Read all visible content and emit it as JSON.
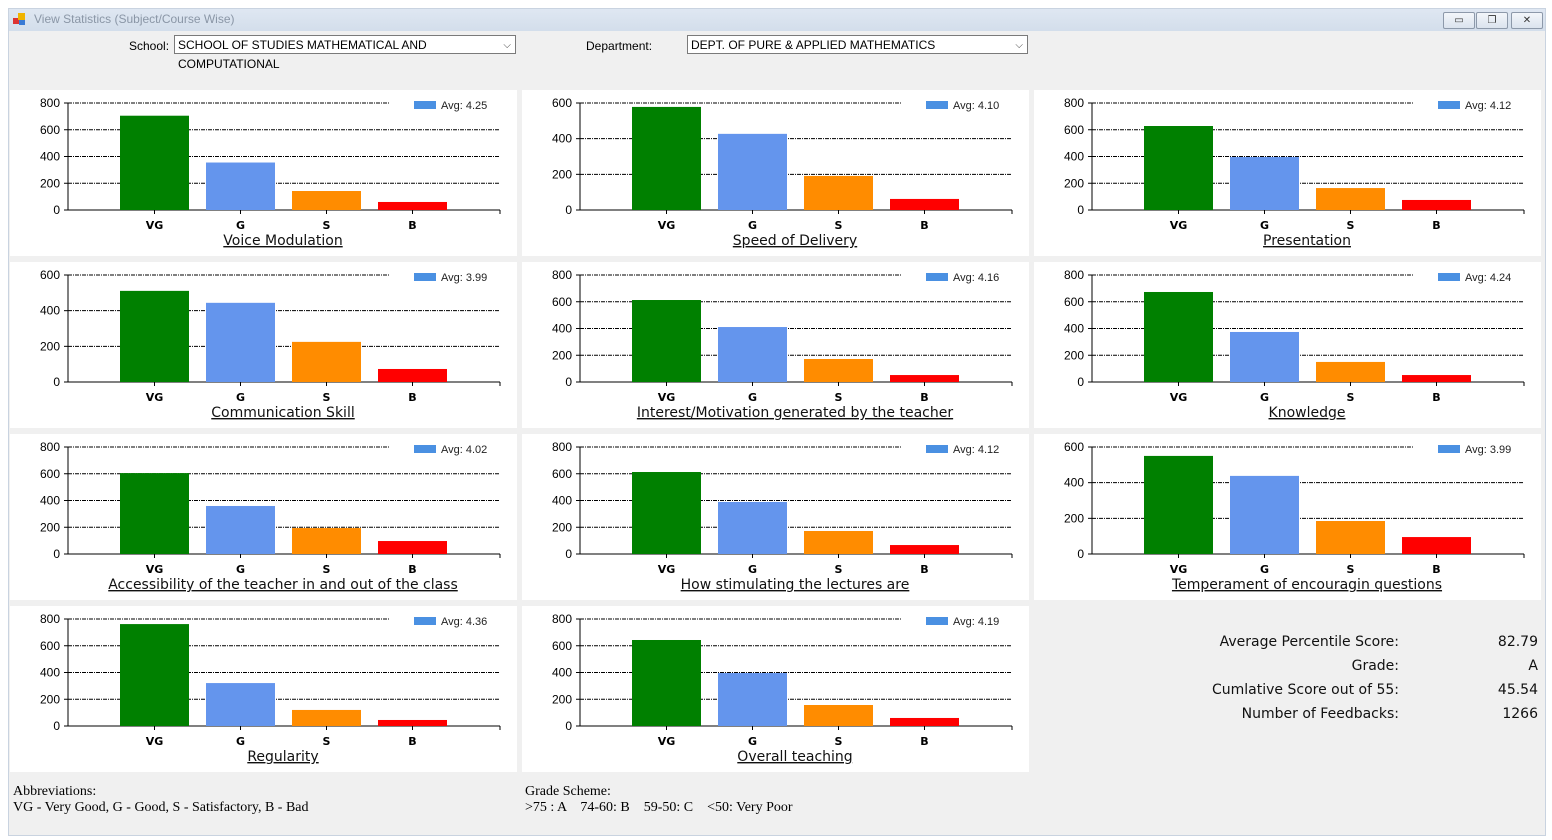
{
  "window": {
    "title": "View Statistics (Subject/Course Wise)",
    "controls": [
      "minimize",
      "restore",
      "close"
    ]
  },
  "filters": {
    "school_label": "School:",
    "school_value": "SCHOOL OF STUDIES MATHEMATICAL AND COMPUTATIONAL",
    "department_label": "Department:",
    "department_value": "DEPT. OF PURE & APPLIED MATHEMATICS"
  },
  "colors": {
    "VG": "#008000",
    "G": "#6495ed",
    "S": "#ff8c00",
    "B": "#ff0000",
    "legend": "#4a90e2"
  },
  "chart_data": [
    {
      "type": "bar",
      "title": "Voice Modulation",
      "categories": [
        "VG",
        "G",
        "S",
        "B"
      ],
      "values": [
        705,
        355,
        142,
        60
      ],
      "legend": "Avg: 4.25",
      "ylim": [
        0,
        800
      ],
      "yticks": [
        0,
        200,
        400,
        600,
        800
      ],
      "grid": true,
      "legend_position": "top-right"
    },
    {
      "type": "bar",
      "title": "Speed of Delivery",
      "categories": [
        "VG",
        "G",
        "S",
        "B"
      ],
      "values": [
        578,
        427,
        191,
        62
      ],
      "legend": "Avg: 4.10",
      "ylim": [
        0,
        600
      ],
      "yticks": [
        0,
        200,
        400,
        600
      ],
      "grid": true,
      "legend_position": "top-right"
    },
    {
      "type": "bar",
      "title": "Presentation",
      "categories": [
        "VG",
        "G",
        "S",
        "B"
      ],
      "values": [
        628,
        396,
        164,
        75
      ],
      "legend": "Avg: 4.12",
      "ylim": [
        0,
        800
      ],
      "yticks": [
        0,
        200,
        400,
        600,
        800
      ],
      "grid": true,
      "legend_position": "top-right"
    },
    {
      "type": "bar",
      "title": "Communication Skill",
      "categories": [
        "VG",
        "G",
        "S",
        "B"
      ],
      "values": [
        511,
        444,
        225,
        73
      ],
      "legend": "Avg: 3.99",
      "ylim": [
        0,
        600
      ],
      "yticks": [
        0,
        200,
        400,
        600
      ],
      "grid": true,
      "legend_position": "top-right"
    },
    {
      "type": "bar",
      "title": "Interest/Motivation generated by the teacher",
      "categories": [
        "VG",
        "G",
        "S",
        "B"
      ],
      "values": [
        613,
        411,
        172,
        52
      ],
      "legend": "Avg: 4.16",
      "ylim": [
        0,
        800
      ],
      "yticks": [
        0,
        200,
        400,
        600,
        800
      ],
      "grid": true,
      "legend_position": "top-right"
    },
    {
      "type": "bar",
      "title": "Knowledge",
      "categories": [
        "VG",
        "G",
        "S",
        "B"
      ],
      "values": [
        673,
        374,
        150,
        52
      ],
      "legend": "Avg: 4.24",
      "ylim": [
        0,
        800
      ],
      "yticks": [
        0,
        200,
        400,
        600,
        800
      ],
      "grid": true,
      "legend_position": "top-right"
    },
    {
      "type": "bar",
      "title": "Accessibility of the teacher in and out of the class",
      "categories": [
        "VG",
        "G",
        "S",
        "B"
      ],
      "values": [
        605,
        359,
        194,
        97
      ],
      "legend": "Avg: 4.02",
      "ylim": [
        0,
        800
      ],
      "yticks": [
        0,
        200,
        400,
        600,
        800
      ],
      "grid": true,
      "legend_position": "top-right"
    },
    {
      "type": "bar",
      "title": "How stimulating the lectures are",
      "categories": [
        "VG",
        "G",
        "S",
        "B"
      ],
      "values": [
        613,
        389,
        172,
        67
      ],
      "legend": "Avg: 4.12",
      "ylim": [
        0,
        800
      ],
      "yticks": [
        0,
        200,
        400,
        600,
        800
      ],
      "grid": true,
      "legend_position": "top-right"
    },
    {
      "type": "bar",
      "title": "Temperament of encouragin questions",
      "categories": [
        "VG",
        "G",
        "S",
        "B"
      ],
      "values": [
        550,
        438,
        185,
        95
      ],
      "legend": "Avg: 3.99",
      "ylim": [
        0,
        600
      ],
      "yticks": [
        0,
        200,
        400,
        600
      ],
      "grid": true,
      "legend_position": "top-right"
    },
    {
      "type": "bar",
      "title": "Regularity",
      "categories": [
        "VG",
        "G",
        "S",
        "B"
      ],
      "values": [
        762,
        321,
        120,
        45
      ],
      "legend": "Avg: 4.36",
      "ylim": [
        0,
        800
      ],
      "yticks": [
        0,
        200,
        400,
        600,
        800
      ],
      "grid": true,
      "legend_position": "top-right"
    },
    {
      "type": "bar",
      "title": "Overall teaching",
      "categories": [
        "VG",
        "G",
        "S",
        "B"
      ],
      "values": [
        643,
        396,
        157,
        60
      ],
      "legend": "Avg: 4.19",
      "ylim": [
        0,
        800
      ],
      "yticks": [
        0,
        200,
        400,
        600,
        800
      ],
      "grid": true,
      "legend_position": "top-right"
    }
  ],
  "stats": [
    {
      "label": "Average Percentile Score:",
      "value": "82.79"
    },
    {
      "label": "Grade:",
      "value": "A"
    },
    {
      "label": "Cumlative Score out of 55:",
      "value": "45.54"
    },
    {
      "label": "Number of Feedbacks:",
      "value": "1266"
    }
  ],
  "abbreviations": {
    "title": "Abbreviations:",
    "text": "VG - Very Good, G - Good, S - Satisfactory, B - Bad"
  },
  "grade_scheme": {
    "title": "Grade Scheme:",
    "text": ">75 : A    74-60: B    59-50: C    <50: Very Poor"
  }
}
